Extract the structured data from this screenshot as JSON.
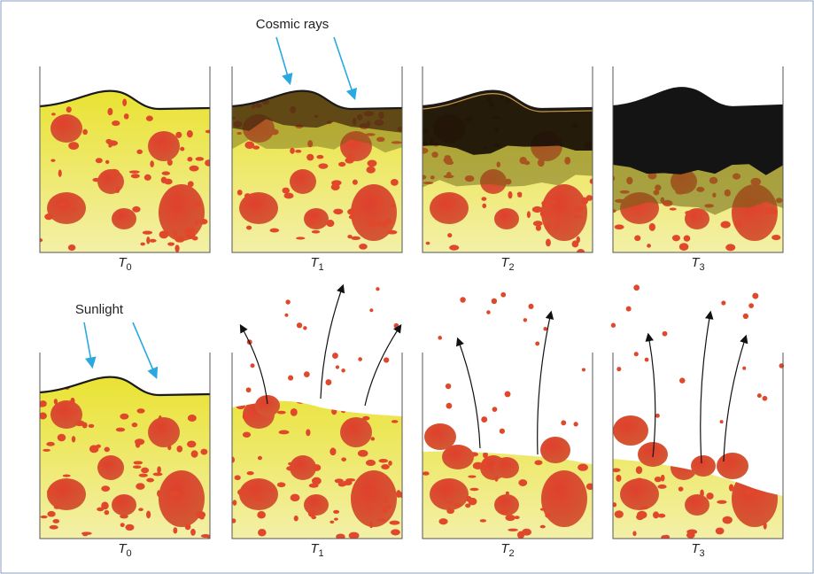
{
  "annotations": {
    "cosmic_rays": "Cosmic rays",
    "sunlight": "Sunlight"
  },
  "top_row": {
    "panels": [
      {
        "symbol": "T",
        "subscript": "0"
      },
      {
        "symbol": "T",
        "subscript": "1"
      },
      {
        "symbol": "T",
        "subscript": "2"
      },
      {
        "symbol": "T",
        "subscript": "3"
      }
    ]
  },
  "bottom_row": {
    "panels": [
      {
        "symbol": "T",
        "subscript": "0"
      },
      {
        "symbol": "T",
        "subscript": "1"
      },
      {
        "symbol": "T",
        "subscript": "2"
      },
      {
        "symbol": "T",
        "subscript": "3"
      }
    ]
  }
}
